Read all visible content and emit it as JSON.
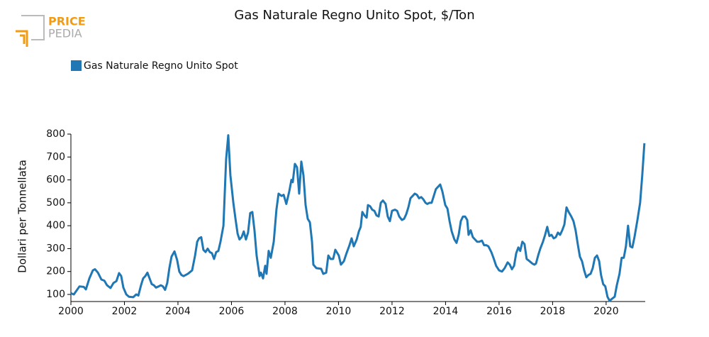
{
  "logo": {
    "line1": "PRICE",
    "line2": "PEDIA"
  },
  "chart_data": {
    "type": "line",
    "title": "Gas Naturale Regno Unito Spot, $/Ton",
    "y_label": "Dollari per Tonnellata",
    "x": [
      2000.0,
      2000.11,
      2000.32,
      2000.48,
      2000.56,
      2000.69,
      2000.82,
      2000.9,
      2001.01,
      2001.14,
      2001.25,
      2001.35,
      2001.48,
      2001.59,
      2001.7,
      2001.8,
      2001.88,
      2001.96,
      2002.07,
      2002.17,
      2002.33,
      2002.44,
      2002.52,
      2002.62,
      2002.7,
      2002.78,
      2002.86,
      2002.94,
      2003.02,
      2003.1,
      2003.18,
      2003.28,
      2003.36,
      2003.44,
      2003.52,
      2003.6,
      2003.68,
      2003.76,
      2003.87,
      2003.97,
      2004.05,
      2004.13,
      2004.21,
      2004.37,
      2004.53,
      2004.64,
      2004.72,
      2004.79,
      2004.87,
      2004.95,
      2005.03,
      2005.11,
      2005.19,
      2005.27,
      2005.35,
      2005.43,
      2005.51,
      2005.59,
      2005.7,
      2005.8,
      2005.88,
      2005.96,
      2006.07,
      2006.15,
      2006.23,
      2006.3,
      2006.38,
      2006.46,
      2006.54,
      2006.62,
      2006.7,
      2006.78,
      2006.86,
      2006.94,
      2007.05,
      2007.1,
      2007.18,
      2007.26,
      2007.31,
      2007.39,
      2007.47,
      2007.58,
      2007.68,
      2007.76,
      2007.87,
      2007.95,
      2008.05,
      2008.16,
      2008.24,
      2008.29,
      2008.37,
      2008.45,
      2008.53,
      2008.61,
      2008.69,
      2008.77,
      2008.85,
      2008.93,
      2009.01,
      2009.06,
      2009.17,
      2009.35,
      2009.43,
      2009.54,
      2009.62,
      2009.7,
      2009.8,
      2009.88,
      2010.01,
      2010.09,
      2010.2,
      2010.3,
      2010.41,
      2010.49,
      2010.57,
      2010.68,
      2010.76,
      2010.83,
      2010.89,
      2010.97,
      2011.05,
      2011.1,
      2011.18,
      2011.26,
      2011.34,
      2011.42,
      2011.5,
      2011.58,
      2011.66,
      2011.76,
      2011.84,
      2011.92,
      2012.0,
      2012.11,
      2012.19,
      2012.27,
      2012.37,
      2012.45,
      2012.53,
      2012.61,
      2012.69,
      2012.77,
      2012.85,
      2012.93,
      2013.01,
      2013.09,
      2013.17,
      2013.25,
      2013.32,
      2013.4,
      2013.48,
      2013.56,
      2013.64,
      2013.72,
      2013.8,
      2013.88,
      2013.99,
      2014.07,
      2014.15,
      2014.23,
      2014.33,
      2014.41,
      2014.49,
      2014.57,
      2014.65,
      2014.73,
      2014.81,
      2014.86,
      2014.94,
      2015.02,
      2015.1,
      2015.18,
      2015.26,
      2015.36,
      2015.44,
      2015.52,
      2015.6,
      2015.71,
      2015.79,
      2015.89,
      2016.0,
      2016.11,
      2016.21,
      2016.32,
      2016.4,
      2016.48,
      2016.56,
      2016.64,
      2016.72,
      2016.79,
      2016.87,
      2016.95,
      2017.03,
      2017.14,
      2017.24,
      2017.32,
      2017.38,
      2017.46,
      2017.54,
      2017.64,
      2017.72,
      2017.8,
      2017.88,
      2017.96,
      2018.04,
      2018.12,
      2018.2,
      2018.28,
      2018.36,
      2018.44,
      2018.52,
      2018.6,
      2018.7,
      2018.78,
      2018.86,
      2018.94,
      2019.02,
      2019.1,
      2019.18,
      2019.26,
      2019.34,
      2019.42,
      2019.5,
      2019.58,
      2019.66,
      2019.74,
      2019.81,
      2019.89,
      2019.97,
      2020.05,
      2020.13,
      2020.21,
      2020.32,
      2020.4,
      2020.5,
      2020.58,
      2020.66,
      2020.74,
      2020.82,
      2020.9,
      2020.98,
      2021.06,
      2021.17,
      2021.27,
      2021.35,
      2021.43
    ],
    "series": [
      {
        "name": "Gas Naturale Regno Unito Spot",
        "color": "#1f77b4",
        "values": [
          105,
          100,
          135,
          133,
          122,
          170,
          205,
          210,
          195,
          165,
          160,
          140,
          128,
          150,
          158,
          193,
          180,
          130,
          100,
          90,
          88,
          100,
          95,
          140,
          170,
          180,
          195,
          170,
          145,
          140,
          130,
          135,
          140,
          135,
          120,
          150,
          215,
          265,
          288,
          250,
          200,
          185,
          180,
          190,
          205,
          270,
          330,
          345,
          350,
          295,
          285,
          300,
          285,
          280,
          255,
          285,
          290,
          330,
          400,
          690,
          795,
          620,
          500,
          430,
          365,
          340,
          350,
          375,
          340,
          370,
          455,
          460,
          380,
          270,
          180,
          195,
          170,
          225,
          190,
          290,
          260,
          330,
          470,
          540,
          530,
          535,
          495,
          550,
          600,
          590,
          670,
          655,
          540,
          680,
          620,
          490,
          430,
          415,
          330,
          230,
          215,
          212,
          190,
          195,
          270,
          255,
          255,
          295,
          270,
          230,
          245,
          280,
          315,
          345,
          310,
          340,
          375,
          395,
          460,
          445,
          435,
          490,
          485,
          470,
          465,
          445,
          440,
          500,
          510,
          495,
          440,
          420,
          465,
          470,
          465,
          440,
          425,
          430,
          450,
          480,
          520,
          530,
          540,
          535,
          520,
          525,
          515,
          500,
          495,
          500,
          500,
          530,
          560,
          570,
          580,
          550,
          490,
          475,
          420,
          375,
          340,
          325,
          360,
          420,
          440,
          440,
          425,
          360,
          380,
          350,
          340,
          330,
          330,
          335,
          315,
          315,
          310,
          285,
          260,
          225,
          205,
          200,
          215,
          240,
          230,
          210,
          225,
          280,
          305,
          290,
          330,
          320,
          255,
          245,
          235,
          230,
          235,
          270,
          300,
          330,
          360,
          395,
          355,
          360,
          345,
          350,
          370,
          360,
          380,
          405,
          480,
          460,
          440,
          420,
          380,
          320,
          265,
          245,
          205,
          175,
          185,
          190,
          215,
          260,
          270,
          245,
          185,
          145,
          135,
          90,
          72,
          80,
          90,
          140,
          190,
          260,
          260,
          310,
          400,
          310,
          305,
          350,
          425,
          500,
          620,
          760
        ]
      }
    ],
    "xlim": [
      2000,
      2021.46
    ],
    "xticks": [
      2000,
      2002,
      2004,
      2006,
      2008,
      2010,
      2012,
      2014,
      2016,
      2018,
      2020
    ],
    "ylim": [
      69,
      800
    ],
    "yticks": [
      100,
      200,
      300,
      400,
      500,
      600,
      700,
      800
    ],
    "grid": false
  }
}
